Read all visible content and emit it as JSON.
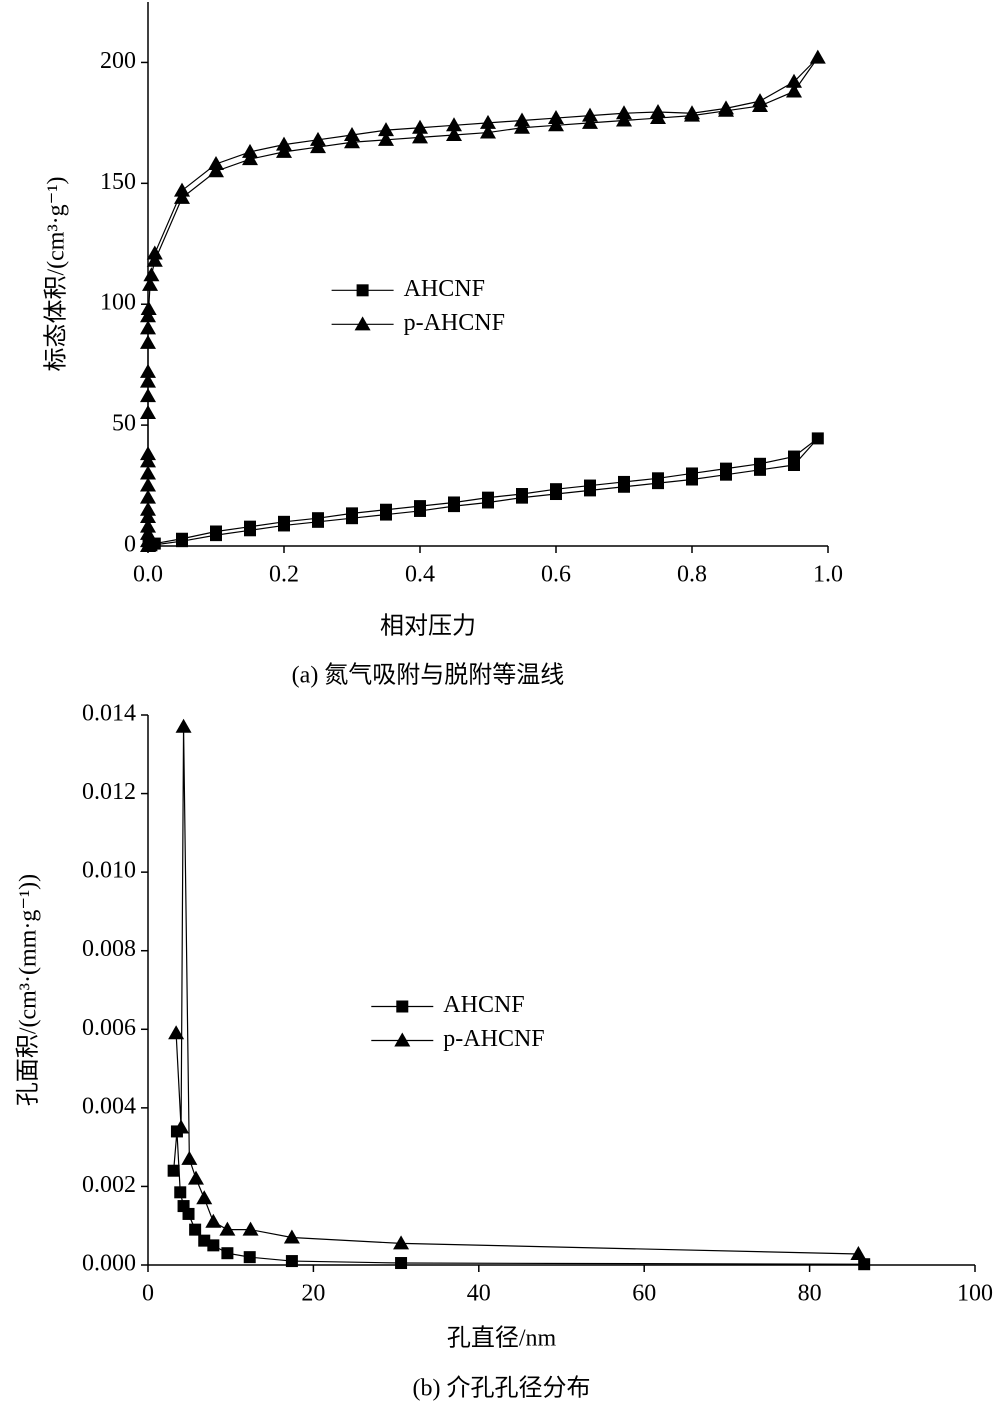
{
  "chart_data": [
    {
      "type": "line",
      "caption": "(a) 氮气吸附与脱附等温线",
      "x_label": "相对压力",
      "y_label": "标态体积/(cm³·g⁻¹)",
      "xlim": [
        0,
        1
      ],
      "ylim": [
        0,
        225
      ],
      "xticks": [
        {
          "value": 0,
          "label": "0.0"
        },
        0.2,
        0.4,
        0.6,
        0.8,
        {
          "value": 1,
          "label": "1.0"
        }
      ],
      "yticks": [
        0,
        50,
        100,
        150,
        200
      ],
      "legend": "center",
      "series": [
        {
          "name": "AHCNF",
          "color": "#000000",
          "marker": "square",
          "x": [
            0.001,
            0.005,
            0.05,
            0.1,
            0.15,
            0.2,
            0.25,
            0.3,
            0.35,
            0.4,
            0.45,
            0.5,
            0.55,
            0.6,
            0.65,
            0.7,
            0.75,
            0.8,
            0.85,
            0.9,
            0.95,
            0.985,
            0.95,
            0.9,
            0.85,
            0.8,
            0.75,
            0.7,
            0.65,
            0.6,
            0.55,
            0.5,
            0.45,
            0.4,
            0.35,
            0.3,
            0.25,
            0.2,
            0.15,
            0.1,
            0.05,
            0.01,
            0.001
          ],
          "values": [
            0,
            0.3,
            2,
            4.5,
            6.5,
            8.5,
            10,
            11.5,
            13,
            14.5,
            16.5,
            18,
            20,
            21.5,
            23,
            24.5,
            26,
            27.5,
            29.5,
            31.5,
            33.5,
            44.5,
            37,
            34,
            32,
            30,
            28,
            26.5,
            25,
            23.5,
            21.5,
            20,
            18,
            16.5,
            15,
            13.5,
            11.5,
            10,
            8,
            6,
            3,
            1,
            0.5
          ]
        },
        {
          "name": "p-AHCNF",
          "color": "#000000",
          "marker": "triangle",
          "x": [
            0,
            0,
            0,
            0,
            0,
            0,
            0,
            0,
            0,
            0,
            0,
            0,
            0,
            0,
            0,
            0,
            0,
            0,
            0.001,
            0.003,
            0.005,
            0.01,
            0.05,
            0.1,
            0.15,
            0.2,
            0.25,
            0.3,
            0.35,
            0.4,
            0.45,
            0.5,
            0.55,
            0.6,
            0.65,
            0.7,
            0.75,
            0.8,
            0.85,
            0.9,
            0.95,
            0.985,
            0.95,
            0.9,
            0.85,
            0.8,
            0.75,
            0.7,
            0.65,
            0.6,
            0.55,
            0.5,
            0.45,
            0.4,
            0.35,
            0.3,
            0.25,
            0.2,
            0.15,
            0.1,
            0.05,
            0.01
          ],
          "values": [
            0,
            2,
            5,
            8,
            12,
            15,
            20,
            25,
            30,
            35,
            38,
            55,
            62,
            68,
            72,
            84,
            90,
            95,
            98,
            108,
            112,
            118,
            144,
            155,
            160,
            163,
            165,
            167,
            168,
            169,
            170,
            171,
            173,
            174,
            175,
            176,
            177,
            178,
            180,
            182,
            188,
            202,
            192,
            184,
            181,
            179,
            179.5,
            179,
            178,
            177,
            176,
            175,
            174,
            173,
            172,
            170,
            168,
            166,
            163,
            158,
            147,
            121
          ]
        }
      ]
    },
    {
      "type": "line",
      "caption": "(b) 介孔孔径分布",
      "x_label": "孔直径/nm",
      "y_label": "孔面积/(cm³·(mm·g⁻¹))",
      "xlim": [
        0,
        100
      ],
      "ylim": [
        0,
        0.014
      ],
      "xticks": [
        0,
        20,
        40,
        60,
        80,
        100
      ],
      "yticks": [
        {
          "value": 0,
          "label": "0.000"
        },
        {
          "value": 0.002,
          "label": "0.002"
        },
        {
          "value": 0.004,
          "label": "0.004"
        },
        {
          "value": 0.006,
          "label": "0.006"
        },
        {
          "value": 0.008,
          "label": "0.008"
        },
        {
          "value": 0.01,
          "label": "0.010"
        },
        {
          "value": 0.012,
          "label": "0.012"
        },
        {
          "value": 0.014,
          "label": "0.014"
        }
      ],
      "legend": "center",
      "series": [
        {
          "name": "AHCNF",
          "color": "#000000",
          "marker": "square",
          "x": [
            3.1,
            3.5,
            3.9,
            4.3,
            4.9,
            5.7,
            6.8,
            7.9,
            9.6,
            12.3,
            17.4,
            30.6,
            86.6
          ],
          "values": [
            0.0024,
            0.0034,
            0.00185,
            0.0015,
            0.0013,
            0.0009,
            0.00062,
            0.0005,
            0.0003,
            0.0002,
            0.0001,
            5e-05,
            2e-05
          ]
        },
        {
          "name": "p-AHCNF",
          "color": "#000000",
          "marker": "triangle",
          "x": [
            3.4,
            4.0,
            4.3,
            5.0,
            5.8,
            6.8,
            7.9,
            9.6,
            12.4,
            17.4,
            30.6,
            85.9
          ],
          "values": [
            0.0059,
            0.0035,
            0.0137,
            0.0027,
            0.0022,
            0.0017,
            0.0011,
            0.0009,
            0.0009,
            0.0007,
            0.00055,
            0.00028
          ]
        }
      ]
    }
  ]
}
